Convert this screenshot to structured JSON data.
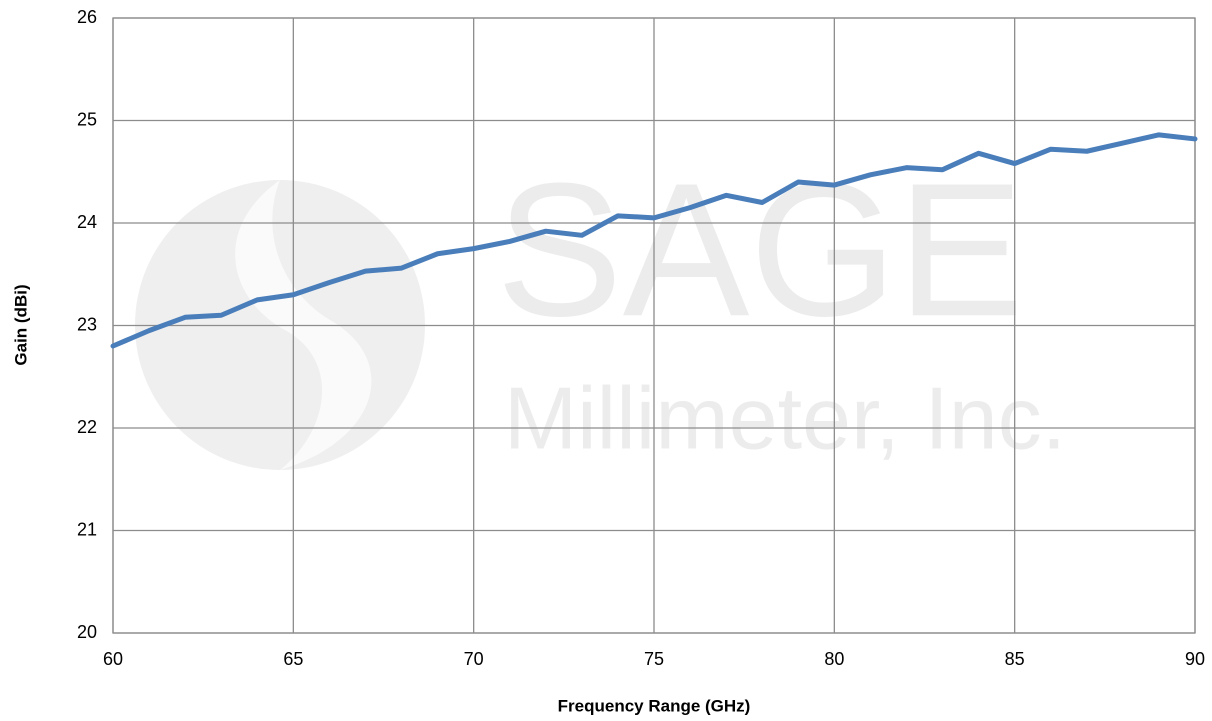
{
  "chart_data": {
    "type": "line",
    "xlabel": "Frequency Range (GHz)",
    "ylabel": "Gain (dBi)",
    "watermark": [
      "SAGE",
      "Millimeter, Inc."
    ],
    "x": [
      60,
      61,
      62,
      63,
      64,
      65,
      66,
      67,
      68,
      69,
      70,
      71,
      72,
      73,
      74,
      75,
      76,
      77,
      78,
      79,
      80,
      81,
      82,
      83,
      84,
      85,
      86,
      87,
      88,
      89,
      90
    ],
    "series": [
      {
        "name": "Gain",
        "color": "#4a7ebb",
        "values": [
          22.8,
          22.95,
          23.08,
          23.1,
          23.25,
          23.3,
          23.42,
          23.53,
          23.56,
          23.7,
          23.75,
          23.82,
          23.92,
          23.88,
          24.07,
          24.05,
          24.15,
          24.27,
          24.2,
          24.4,
          24.37,
          24.47,
          24.54,
          24.52,
          24.68,
          24.58,
          24.72,
          24.7,
          24.78,
          24.86,
          24.82
        ]
      }
    ],
    "xlim": [
      60,
      90
    ],
    "xticks": [
      60,
      65,
      70,
      75,
      80,
      85,
      90
    ],
    "ylim": [
      20,
      26
    ],
    "yticks": [
      20,
      21,
      22,
      23,
      24,
      25,
      26
    ],
    "grid": true
  }
}
